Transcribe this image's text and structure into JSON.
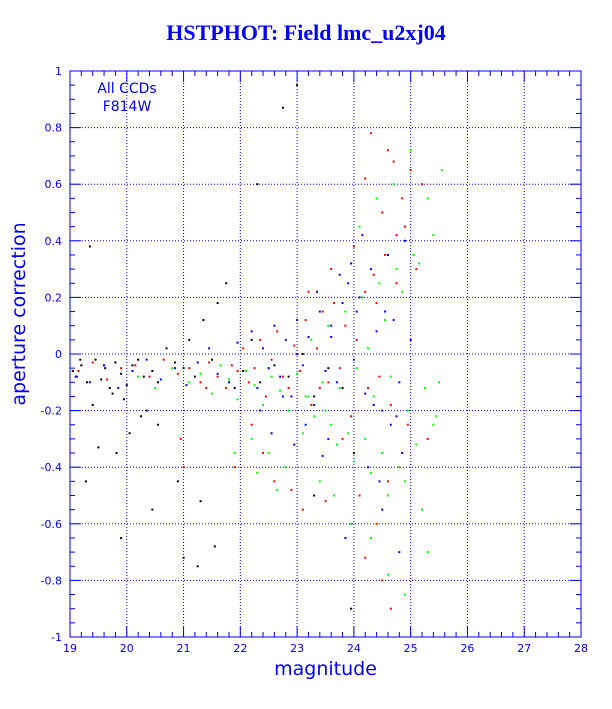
{
  "chart_data": {
    "type": "scatter",
    "title": "HSTPHOT: Field lmc_u2xj04",
    "xlabel": "magnitude",
    "ylabel": "aperture correction",
    "xlim": [
      19,
      28
    ],
    "ylim": [
      -1,
      1
    ],
    "xticks": [
      "19",
      "20",
      "21",
      "22",
      "23",
      "24",
      "25",
      "26",
      "27",
      "28"
    ],
    "yticks": [
      "-1",
      "-0.8",
      "-0.6",
      "-0.4",
      "-0.2",
      "0",
      "0.2",
      "0.4",
      "0.6",
      "0.8",
      "1"
    ],
    "annotation": [
      "All CCDs",
      "F814W"
    ],
    "grid": true,
    "colors": {
      "axis": "#0000ff",
      "grid": "#0000ff",
      "text": "#0000ff"
    },
    "series": [
      {
        "color": "#000000",
        "x": [
          19.05,
          19.12,
          19.2,
          19.3,
          19.45,
          19.55,
          19.62,
          19.7,
          19.8,
          19.9,
          20.0,
          20.1,
          20.2,
          20.3,
          20.45,
          20.55,
          20.7,
          20.85,
          21.0,
          21.1,
          21.2,
          21.35,
          21.5,
          21.6,
          21.75,
          21.9,
          22.05,
          22.2,
          22.35,
          22.6,
          22.85,
          23.1,
          23.3,
          23.55,
          23.8,
          19.35,
          19.5,
          19.82,
          20.05,
          20.25,
          20.55,
          20.9,
          21.3,
          21.55,
          19.28,
          19.4,
          19.75,
          19.9,
          20.45,
          21.0,
          21.25,
          22.75,
          23.0,
          23.3,
          23.95,
          24.0,
          22.3,
          19.18,
          19.6,
          19.95,
          20.35
        ],
        "y": [
          -0.06,
          -0.08,
          -0.04,
          -0.1,
          -0.02,
          -0.09,
          -0.05,
          -0.12,
          -0.03,
          -0.07,
          -0.11,
          -0.04,
          -0.02,
          -0.08,
          -0.06,
          -0.1,
          0.02,
          -0.03,
          -0.05,
          0.05,
          -0.08,
          0.12,
          -0.02,
          0.18,
          0.25,
          -0.12,
          -0.06,
          0.05,
          -0.1,
          -0.04,
          -0.08,
          0.0,
          -0.15,
          -0.05,
          -0.12,
          0.38,
          -0.33,
          -0.35,
          -0.28,
          -0.22,
          -0.25,
          -0.45,
          -0.52,
          -0.68,
          -0.45,
          -0.18,
          -0.14,
          -0.65,
          -0.55,
          -0.72,
          -0.75,
          0.87,
          0.95,
          -0.5,
          -0.9,
          -0.35,
          0.6,
          -0.02,
          -0.04,
          -0.16,
          -0.2
        ]
      },
      {
        "color": "#ff0000",
        "x": [
          19.15,
          19.4,
          19.65,
          19.9,
          20.15,
          20.4,
          20.65,
          20.9,
          21.1,
          21.3,
          21.45,
          21.6,
          21.75,
          21.85,
          21.95,
          22.05,
          22.15,
          22.25,
          22.35,
          22.45,
          22.55,
          22.65,
          22.75,
          22.85,
          22.95,
          23.05,
          23.15,
          23.25,
          23.35,
          23.45,
          23.55,
          23.65,
          23.75,
          23.85,
          23.95,
          24.05,
          24.15,
          24.25,
          24.35,
          24.45,
          24.55,
          24.65,
          24.75,
          24.85,
          24.95,
          23.2,
          23.4,
          23.6,
          23.8,
          24.0,
          24.2,
          24.4,
          24.6,
          24.8,
          25.0,
          24.3,
          24.5,
          24.7,
          24.9,
          25.2,
          25.3,
          24.2,
          24.1,
          24.4,
          24.6,
          24.75,
          25.1,
          22.4,
          22.6,
          22.9,
          23.5,
          24.2,
          24.5,
          24.65,
          21.9,
          22.2,
          21.4,
          20.95,
          21.0,
          23.1
        ],
        "y": [
          -0.06,
          -0.03,
          -0.09,
          -0.05,
          -0.04,
          -0.08,
          -0.02,
          -0.07,
          -0.05,
          -0.1,
          -0.03,
          -0.08,
          -0.12,
          -0.04,
          -0.06,
          0.02,
          -0.1,
          -0.05,
          0.05,
          -0.15,
          -0.02,
          0.08,
          -0.08,
          -0.12,
          0.03,
          -0.06,
          0.12,
          -0.18,
          0.02,
          0.15,
          -0.1,
          0.18,
          -0.05,
          0.1,
          -0.22,
          0.05,
          0.2,
          -0.12,
          0.28,
          -0.08,
          0.35,
          -0.18,
          0.42,
          0.55,
          -0.25,
          0.22,
          -0.12,
          0.3,
          -0.3,
          0.38,
          0.62,
          0.18,
          0.72,
          -0.4,
          0.65,
          0.78,
          0.5,
          0.68,
          0.45,
          0.6,
          -0.3,
          0.22,
          -0.5,
          -0.6,
          -0.45,
          0.25,
          0.3,
          -0.35,
          -0.45,
          -0.48,
          -0.52,
          -0.72,
          -0.8,
          -0.9,
          -0.4,
          -0.25,
          -0.12,
          -0.3,
          -0.4,
          -0.55
        ]
      },
      {
        "color": "#0000ff",
        "x": [
          19.1,
          19.35,
          19.6,
          19.85,
          20.1,
          20.35,
          20.6,
          20.85,
          21.05,
          21.25,
          21.45,
          21.6,
          21.8,
          21.95,
          22.1,
          22.2,
          22.3,
          22.4,
          22.5,
          22.6,
          22.7,
          22.8,
          22.9,
          23.0,
          23.1,
          23.2,
          23.3,
          23.4,
          23.5,
          23.6,
          23.7,
          23.8,
          23.9,
          24.0,
          24.1,
          24.2,
          24.3,
          24.4,
          24.5,
          24.6,
          24.7,
          24.8,
          24.9,
          25.0,
          23.15,
          23.35,
          23.55,
          23.75,
          23.95,
          24.15,
          24.35,
          24.55,
          24.75,
          22.35,
          22.55,
          22.75,
          22.95,
          23.45,
          24.25,
          24.45,
          24.65,
          24.85,
          23.0,
          23.6,
          24.5,
          24.8,
          23.85,
          24.05
        ],
        "y": [
          -0.08,
          -0.1,
          -0.04,
          -0.12,
          -0.06,
          -0.02,
          -0.09,
          -0.05,
          -0.11,
          -0.03,
          0.02,
          -0.07,
          -0.1,
          0.04,
          -0.06,
          0.08,
          -0.12,
          0.02,
          -0.05,
          0.1,
          -0.08,
          0.05,
          -0.15,
          0.12,
          -0.04,
          0.06,
          -0.18,
          0.15,
          -0.06,
          0.1,
          -0.1,
          0.18,
          0.25,
          -0.02,
          0.2,
          -0.14,
          0.3,
          0.08,
          -0.2,
          0.35,
          0.12,
          -0.1,
          0.4,
          0.05,
          -0.25,
          0.22,
          -0.3,
          0.28,
          0.32,
          0.42,
          -0.18,
          0.15,
          -0.22,
          -0.2,
          -0.28,
          -0.15,
          -0.32,
          -0.36,
          -0.4,
          -0.45,
          -0.25,
          -0.35,
          0.0,
          0.06,
          -0.55,
          -0.7,
          -0.65,
          0.15
        ]
      },
      {
        "color": "#00ff00",
        "x": [
          20.2,
          20.5,
          20.8,
          21.1,
          21.3,
          21.5,
          21.65,
          21.8,
          21.95,
          22.1,
          22.25,
          22.4,
          22.55,
          22.7,
          22.85,
          23.0,
          23.15,
          23.3,
          23.45,
          23.6,
          23.75,
          23.9,
          24.05,
          24.2,
          24.35,
          24.5,
          24.65,
          24.8,
          24.95,
          25.1,
          25.25,
          25.4,
          25.5,
          22.2,
          22.5,
          22.8,
          23.1,
          23.4,
          23.7,
          24.0,
          24.3,
          24.6,
          24.9,
          25.2,
          25.45,
          23.25,
          23.55,
          23.85,
          24.15,
          24.45,
          24.75,
          25.05,
          25.3,
          25.55,
          24.1,
          24.4,
          24.7,
          25.0,
          24.25,
          24.55,
          24.85,
          25.15,
          25.4,
          23.65,
          23.95,
          24.3,
          24.6,
          24.9,
          25.3,
          21.9,
          22.3,
          22.65,
          23.2,
          23.5
        ],
        "y": [
          -0.08,
          -0.12,
          -0.05,
          -0.1,
          -0.07,
          -0.14,
          -0.04,
          -0.09,
          -0.16,
          -0.06,
          -0.11,
          -0.18,
          -0.08,
          -0.13,
          -0.2,
          -0.07,
          -0.15,
          -0.22,
          -0.1,
          -0.25,
          -0.12,
          -0.28,
          -0.05,
          -0.3,
          -0.15,
          -0.35,
          -0.08,
          -0.4,
          -0.2,
          -0.32,
          -0.12,
          -0.25,
          -0.1,
          -0.3,
          -0.35,
          -0.4,
          -0.28,
          -0.45,
          -0.32,
          -0.38,
          -0.42,
          -0.5,
          -0.45,
          -0.55,
          -0.22,
          0.05,
          0.1,
          0.15,
          0.2,
          0.25,
          0.3,
          0.35,
          0.55,
          0.65,
          0.45,
          0.55,
          0.6,
          0.72,
          0.02,
          0.12,
          0.22,
          0.32,
          0.42,
          -0.5,
          -0.6,
          -0.65,
          -0.78,
          -0.85,
          -0.7,
          -0.35,
          -0.42,
          -0.48,
          -0.15,
          -0.2
        ]
      }
    ]
  }
}
